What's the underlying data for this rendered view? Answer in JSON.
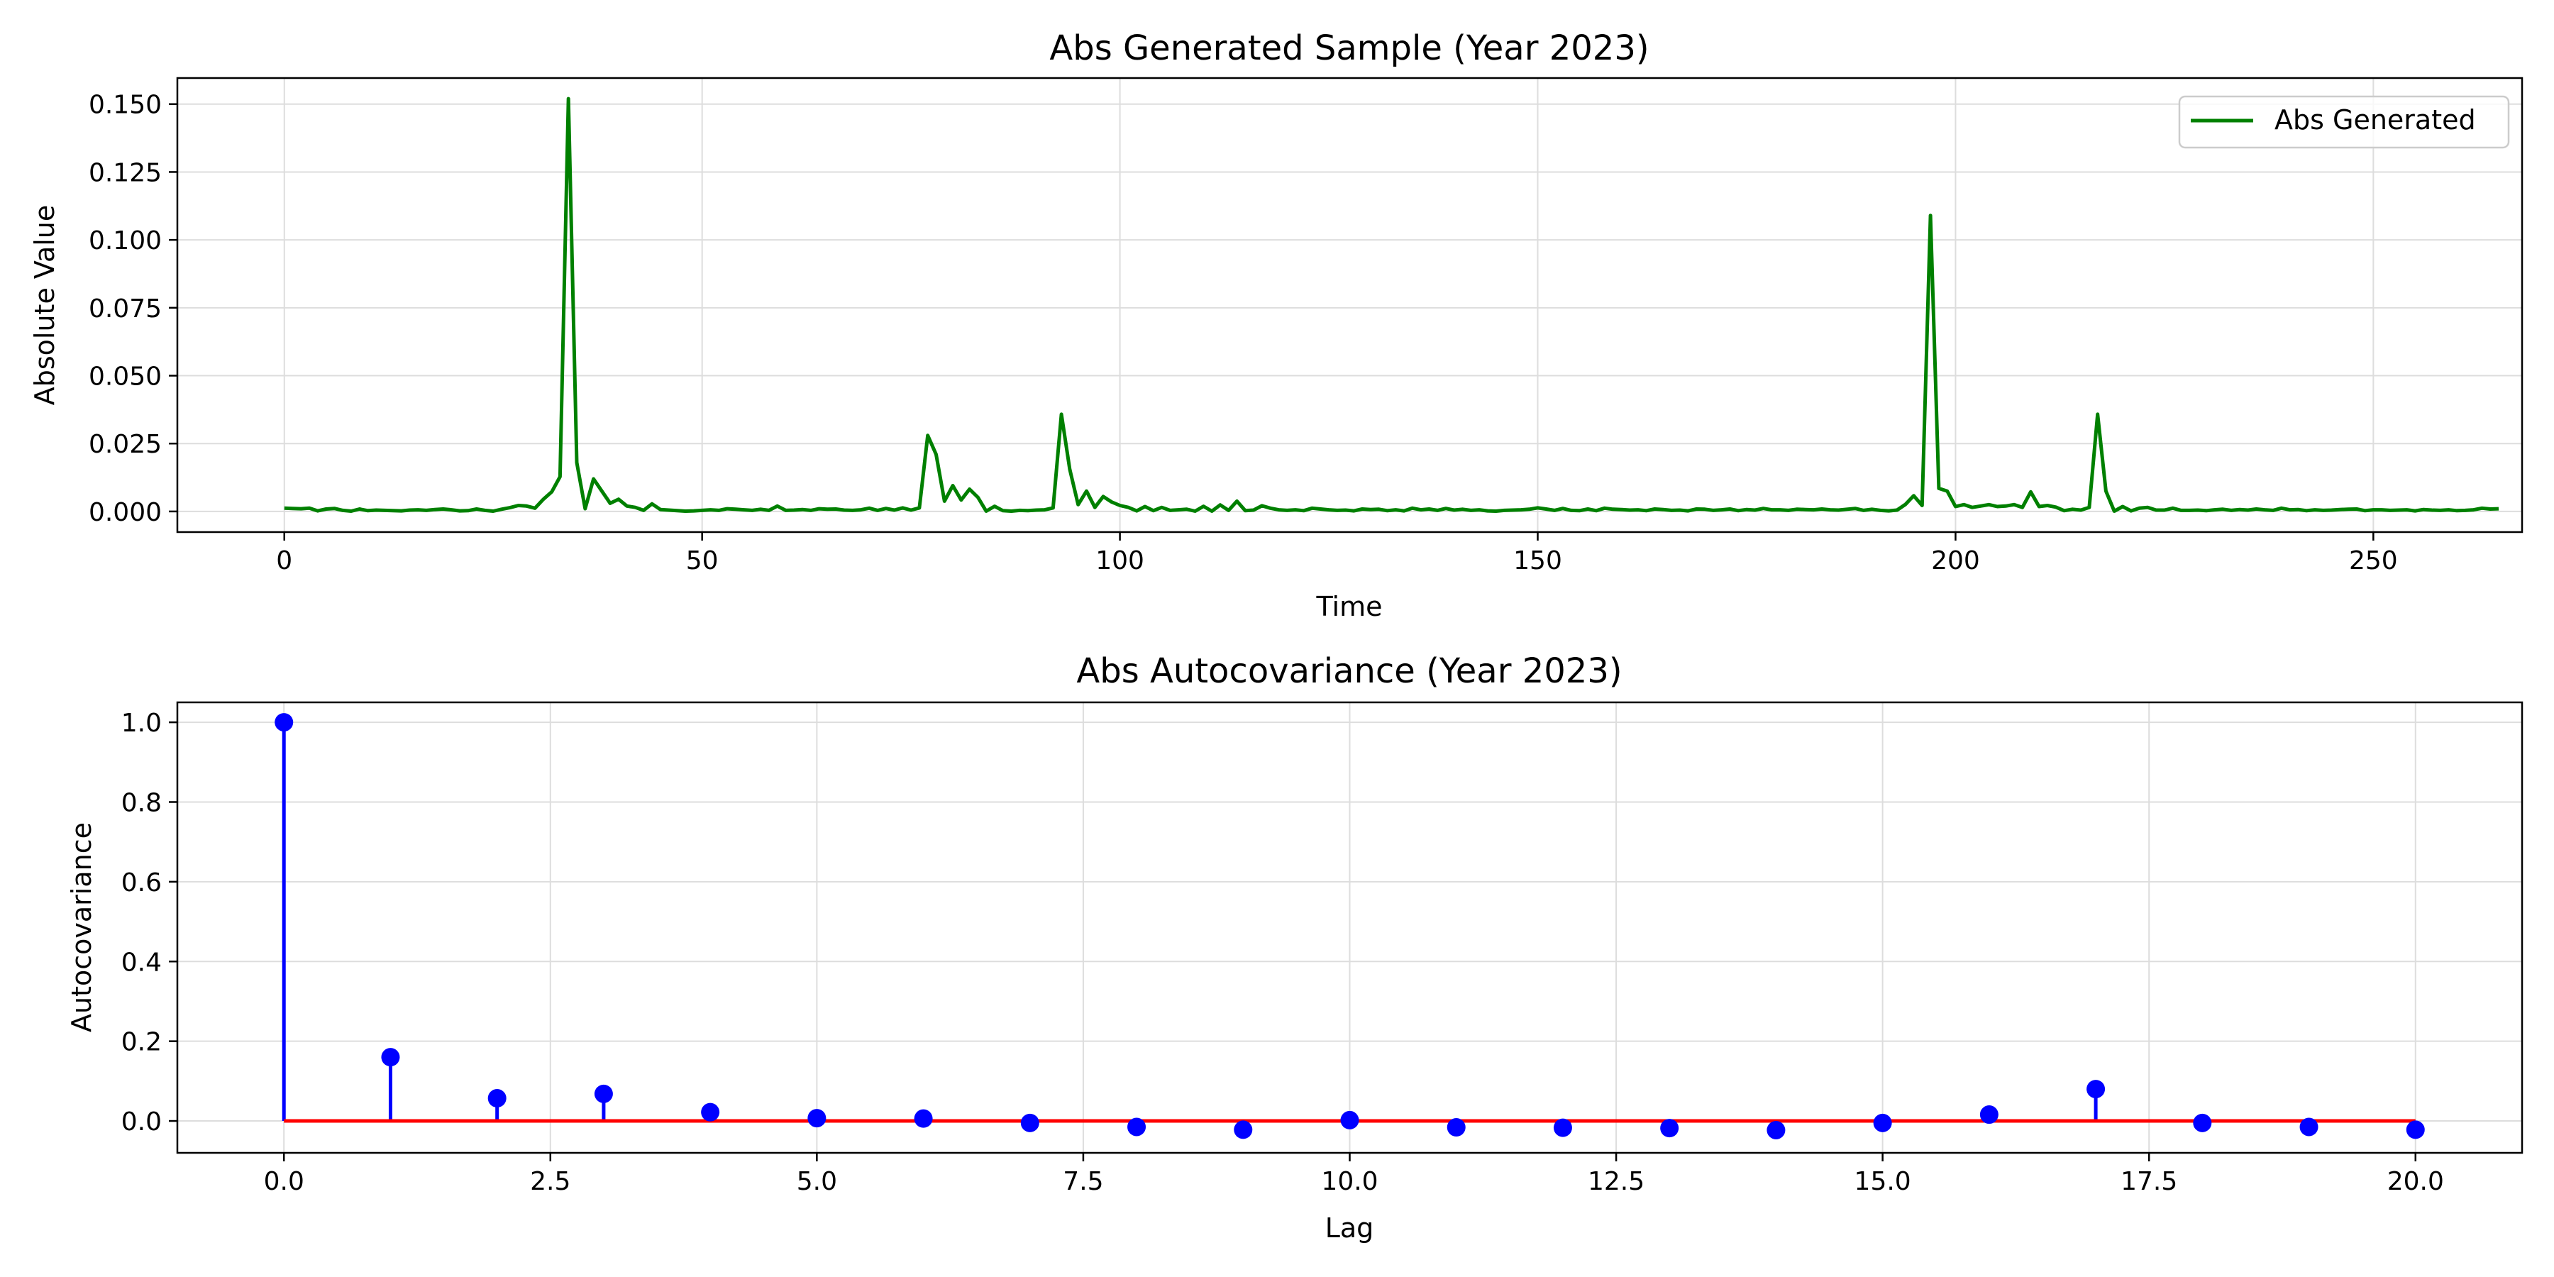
{
  "chart_data": [
    {
      "type": "line",
      "title": "Abs Generated Sample (Year 2023)",
      "xlabel": "Time",
      "ylabel": "Absolute Value",
      "xlim": [
        -12.8,
        267.8
      ],
      "ylim": [
        -0.0076,
        0.1596
      ],
      "xticks": [
        0,
        50,
        100,
        150,
        200,
        250
      ],
      "xtick_labels": [
        "0",
        "50",
        "100",
        "150",
        "200",
        "250"
      ],
      "yticks": [
        0,
        0.025,
        0.05,
        0.075,
        0.1,
        0.125,
        0.15
      ],
      "ytick_labels": [
        "0.000",
        "0.025",
        "0.050",
        "0.075",
        "0.100",
        "0.125",
        "0.150"
      ],
      "grid": true,
      "legend": {
        "position": "top-right",
        "entries": [
          "Abs Generated"
        ]
      },
      "series": [
        {
          "name": "Abs Generated",
          "color": "#008000",
          "x_start": 0,
          "x_step": 1,
          "values": [
            0.0012,
            0.0011,
            0.001,
            0.0012,
            0.0002,
            0.0009,
            0.0011,
            0.0004,
            0.0001,
            0.0009,
            0.0003,
            0.0005,
            0.0004,
            0.0003,
            0.0002,
            0.0005,
            0.0006,
            0.0004,
            0.0007,
            0.0009,
            0.0006,
            0.0002,
            0.0003,
            0.0009,
            0.0004,
            0.0001,
            0.0008,
            0.0014,
            0.0022,
            0.002,
            0.0012,
            0.0045,
            0.0072,
            0.0128,
            0.152,
            0.018,
            0.001,
            0.012,
            0.0075,
            0.003,
            0.0045,
            0.002,
            0.0015,
            0.0004,
            0.0028,
            0.0007,
            0.0005,
            0.0003,
            0.0001,
            0.0002,
            0.0004,
            0.0006,
            0.0004,
            0.001,
            0.0008,
            0.0006,
            0.0004,
            0.0008,
            0.0004,
            0.002,
            0.0004,
            0.0005,
            0.0007,
            0.0004,
            0.001,
            0.0008,
            0.0009,
            0.0005,
            0.0004,
            0.0006,
            0.0012,
            0.0004,
            0.0011,
            0.0005,
            0.0013,
            0.0005,
            0.0013,
            0.028,
            0.021,
            0.0038,
            0.0095,
            0.0042,
            0.0082,
            0.0052,
            0.0001,
            0.0019,
            0.0003,
            0.0001,
            0.0004,
            0.0003,
            0.0005,
            0.0006,
            0.0013,
            0.0358,
            0.0155,
            0.0025,
            0.0075,
            0.0015,
            0.0055,
            0.0035,
            0.0022,
            0.0015,
            0.0002,
            0.0018,
            0.0003,
            0.0015,
            0.0004,
            0.0006,
            0.0008,
            0.0001,
            0.0019,
            0.0001,
            0.0024,
            0.0004,
            0.0038,
            0.0003,
            0.0005,
            0.0021,
            0.0012,
            0.0006,
            0.0004,
            0.0006,
            0.0003,
            0.0012,
            0.0009,
            0.0006,
            0.0004,
            0.0005,
            0.0002,
            0.0009,
            0.0007,
            0.0008,
            0.0003,
            0.0006,
            0.0002,
            0.0012,
            0.0006,
            0.0009,
            0.0004,
            0.0011,
            0.0005,
            0.0008,
            0.0004,
            0.0006,
            0.0002,
            0.0001,
            0.0004,
            0.0005,
            0.0006,
            0.0008,
            0.0013,
            0.0009,
            0.0004,
            0.0011,
            0.0004,
            0.0003,
            0.0009,
            0.0003,
            0.0012,
            0.0008,
            0.0007,
            0.0005,
            0.0006,
            0.0003,
            0.0009,
            0.0007,
            0.0004,
            0.0005,
            0.0002,
            0.0009,
            0.0008,
            0.0004,
            0.0006,
            0.0009,
            0.0003,
            0.0007,
            0.0005,
            0.0011,
            0.0006,
            0.0006,
            0.0004,
            0.0008,
            0.0007,
            0.0006,
            0.0009,
            0.0006,
            0.0005,
            0.0008,
            0.0011,
            0.0004,
            0.0008,
            0.0004,
            0.0002,
            0.0005,
            0.0026,
            0.0058,
            0.0022,
            0.109,
            0.0085,
            0.0075,
            0.0018,
            0.0025,
            0.0015,
            0.002,
            0.0025,
            0.0018,
            0.002,
            0.0025,
            0.0015,
            0.0072,
            0.0018,
            0.0022,
            0.0016,
            0.0003,
            0.0008,
            0.0005,
            0.0015,
            0.0358,
            0.0075,
            0.0001,
            0.0018,
            0.0002,
            0.0012,
            0.0015,
            0.0005,
            0.0005,
            0.0012,
            0.0004,
            0.0004,
            0.0005,
            0.0003,
            0.0006,
            0.0008,
            0.0004,
            0.0007,
            0.0005,
            0.0009,
            0.0006,
            0.0004,
            0.0012,
            0.0006,
            0.0007,
            0.0003,
            0.0006,
            0.0004,
            0.0005,
            0.0007,
            0.0008,
            0.0009,
            0.0003,
            0.0006,
            0.0006,
            0.0004,
            0.0005,
            0.0006,
            0.0002,
            0.0007,
            0.0005,
            0.0004,
            0.0006,
            0.0003,
            0.0004,
            0.0006,
            0.0012,
            0.0009,
            0.001
          ]
        }
      ]
    },
    {
      "type": "stem",
      "title": "Abs Autocovariance (Year 2023)",
      "xlabel": "Lag",
      "ylabel": "Autocovariance",
      "xlim": [
        -1.0,
        21.0
      ],
      "ylim": [
        -0.08,
        1.05
      ],
      "xticks": [
        0,
        2.5,
        5,
        7.5,
        10,
        12.5,
        15,
        17.5,
        20
      ],
      "xtick_labels": [
        "0.0",
        "2.5",
        "5.0",
        "7.5",
        "10.0",
        "12.5",
        "15.0",
        "17.5",
        "20.0"
      ],
      "yticks": [
        0,
        0.2,
        0.4,
        0.6,
        0.8,
        1.0
      ],
      "ytick_labels": [
        "0.0",
        "0.2",
        "0.4",
        "0.6",
        "0.8",
        "1.0"
      ],
      "grid": true,
      "baseline": 0,
      "stem_color": "#0000ff",
      "baseline_color": "#ff0000",
      "lags": [
        0,
        1,
        2,
        3,
        4,
        5,
        6,
        7,
        8,
        9,
        10,
        11,
        12,
        13,
        14,
        15,
        16,
        17,
        18,
        19,
        20
      ],
      "values": [
        1.0,
        0.16,
        0.057,
        0.068,
        0.022,
        0.007,
        0.006,
        -0.005,
        -0.015,
        -0.022,
        0.002,
        -0.016,
        -0.017,
        -0.018,
        -0.023,
        -0.005,
        0.016,
        0.08,
        -0.005,
        -0.015,
        -0.022
      ]
    }
  ]
}
